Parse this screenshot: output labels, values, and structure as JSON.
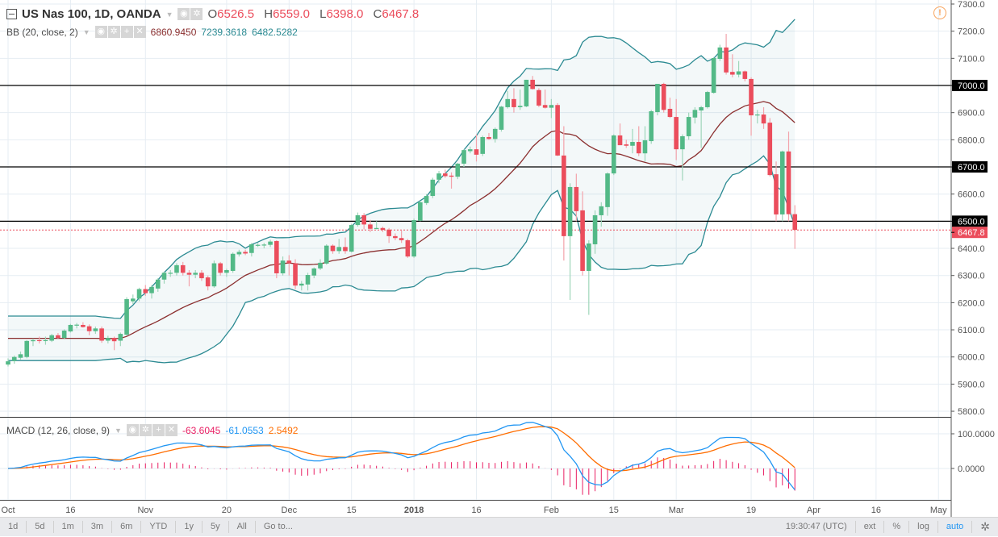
{
  "symbol": {
    "title": "US Nas 100, 1D, OANDA",
    "o_label": "O",
    "o": "6526.5",
    "h_label": "H",
    "h": "6559.0",
    "l_label": "L",
    "l": "6398.0",
    "c_label": "C",
    "c": "6467.8"
  },
  "bb": {
    "label": "BB (20, close, 2)",
    "basis": "6860.9450",
    "upper": "7239.3618",
    "lower": "6482.5282"
  },
  "macd": {
    "label": "MACD (12, 26, close, 9)",
    "hist": "-63.6045",
    "macd": "-61.0553",
    "signal": "2.5492"
  },
  "colors": {
    "up": "#53b987",
    "down": "#eb4d5c",
    "band": "#2b8a92",
    "basis": "#8b2f2f",
    "macd": "#2196f3",
    "signal": "#ff6d00",
    "hist": "#e91e63"
  },
  "toolbar": {
    "ranges": [
      "1d",
      "5d",
      "1m",
      "3m",
      "6m",
      "YTD",
      "1y",
      "5y",
      "All"
    ],
    "goto": "Go to...",
    "time": "19:30:47 (UTC)",
    "ext": "ext",
    "percent": "%",
    "log": "log",
    "auto": "auto"
  },
  "chart_data": {
    "type": "candlestick",
    "title": "US Nas 100, 1D, OANDA",
    "price_axis": {
      "ticks": [
        "7300.0",
        "7200.0",
        "7100.0",
        "7000.0",
        "6900.0",
        "6800.0",
        "6700.0",
        "6600.0",
        "6500.0",
        "6400.0",
        "6300.0",
        "6200.0",
        "6100.0",
        "6000.0",
        "5900.0",
        "5800.0"
      ],
      "range": [
        5800,
        7300
      ]
    },
    "macd_axis": {
      "ticks": [
        "100.0000",
        "0.0000"
      ]
    },
    "horizontal_lines": [
      {
        "value": 7000,
        "label": "7000.0"
      },
      {
        "value": 6700,
        "label": "6700.0"
      },
      {
        "value": 6500,
        "label": "6500.0"
      }
    ],
    "last_price": {
      "value": 6467.8,
      "label": "6467.8"
    },
    "time_ticks": [
      {
        "bar": 0,
        "label": "Oct"
      },
      {
        "bar": 10,
        "label": "16"
      },
      {
        "bar": 22,
        "label": "Nov"
      },
      {
        "bar": 35,
        "label": "20"
      },
      {
        "bar": 45,
        "label": "Dec"
      },
      {
        "bar": 55,
        "label": "15"
      },
      {
        "bar": 65,
        "label": "2018"
      },
      {
        "bar": 75,
        "label": "16"
      },
      {
        "bar": 87,
        "label": "Feb"
      },
      {
        "bar": 97,
        "label": "15"
      },
      {
        "bar": 107,
        "label": "Mar"
      },
      {
        "bar": 119,
        "label": "19"
      },
      {
        "bar": 129,
        "label": "Apr"
      },
      {
        "bar": 139,
        "label": "16"
      },
      {
        "bar": 149,
        "label": "May"
      }
    ],
    "ohlc": [
      [
        5972,
        5995,
        5965,
        5984
      ],
      [
        5985,
        6005,
        5975,
        6000
      ],
      [
        5997,
        6020,
        5990,
        6010
      ],
      [
        6000,
        6062,
        5995,
        6059
      ],
      [
        6058,
        6068,
        6040,
        6062
      ],
      [
        6062,
        6075,
        6050,
        6060
      ],
      [
        6060,
        6075,
        6045,
        6062
      ],
      [
        6060,
        6085,
        6055,
        6080
      ],
      [
        6080,
        6088,
        6068,
        6070
      ],
      [
        6070,
        6102,
        6065,
        6097
      ],
      [
        6094,
        6122,
        6090,
        6118
      ],
      [
        6118,
        6125,
        6105,
        6119
      ],
      [
        6118,
        6128,
        6108,
        6110
      ],
      [
        6113,
        6120,
        6080,
        6095
      ],
      [
        6095,
        6112,
        6085,
        6105
      ],
      [
        6105,
        6112,
        6052,
        6060
      ],
      [
        6060,
        6078,
        6050,
        6070
      ],
      [
        6070,
        6075,
        6025,
        6058
      ],
      [
        6060,
        6090,
        6040,
        6085
      ],
      [
        6082,
        6220,
        6078,
        6213
      ],
      [
        6205,
        6230,
        6195,
        6215
      ],
      [
        6215,
        6255,
        6205,
        6250
      ],
      [
        6250,
        6265,
        6225,
        6235
      ],
      [
        6235,
        6265,
        6215,
        6258
      ],
      [
        6252,
        6290,
        6240,
        6285
      ],
      [
        6285,
        6315,
        6270,
        6310
      ],
      [
        6310,
        6320,
        6295,
        6310
      ],
      [
        6310,
        6345,
        6300,
        6338
      ],
      [
        6338,
        6350,
        6300,
        6310
      ],
      [
        6310,
        6320,
        6260,
        6303
      ],
      [
        6303,
        6320,
        6290,
        6310
      ],
      [
        6310,
        6320,
        6280,
        6290
      ],
      [
        6293,
        6300,
        6245,
        6260
      ],
      [
        6260,
        6355,
        6255,
        6345
      ],
      [
        6345,
        6350,
        6300,
        6310
      ],
      [
        6310,
        6325,
        6295,
        6320
      ],
      [
        6317,
        6385,
        6310,
        6380
      ],
      [
        6378,
        6395,
        6370,
        6387
      ],
      [
        6387,
        6395,
        6375,
        6381
      ],
      [
        6383,
        6420,
        6370,
        6415
      ],
      [
        6413,
        6420,
        6405,
        6413
      ],
      [
        6413,
        6420,
        6400,
        6414
      ],
      [
        6413,
        6432,
        6405,
        6425
      ],
      [
        6427,
        6430,
        6290,
        6308
      ],
      [
        6308,
        6370,
        6300,
        6355
      ],
      [
        6355,
        6375,
        6300,
        6345
      ],
      [
        6345,
        6360,
        6250,
        6263
      ],
      [
        6263,
        6280,
        6245,
        6270
      ],
      [
        6267,
        6310,
        6245,
        6302
      ],
      [
        6300,
        6330,
        6290,
        6326
      ],
      [
        6326,
        6360,
        6320,
        6347
      ],
      [
        6344,
        6415,
        6340,
        6410
      ],
      [
        6410,
        6415,
        6380,
        6390
      ],
      [
        6390,
        6435,
        6380,
        6405
      ],
      [
        6405,
        6440,
        6380,
        6390
      ],
      [
        6388,
        6490,
        6385,
        6486
      ],
      [
        6486,
        6532,
        6480,
        6522
      ],
      [
        6522,
        6530,
        6470,
        6488
      ],
      [
        6488,
        6505,
        6460,
        6472
      ],
      [
        6472,
        6500,
        6470,
        6475
      ],
      [
        6475,
        6480,
        6460,
        6468
      ],
      [
        6469,
        6475,
        6420,
        6445
      ],
      [
        6445,
        6455,
        6430,
        6438
      ],
      [
        6438,
        6465,
        6420,
        6430
      ],
      [
        6430,
        6435,
        6365,
        6370
      ],
      [
        6370,
        6510,
        6365,
        6504
      ],
      [
        6502,
        6575,
        6500,
        6570
      ],
      [
        6567,
        6600,
        6560,
        6593
      ],
      [
        6593,
        6660,
        6585,
        6653
      ],
      [
        6653,
        6685,
        6640,
        6676
      ],
      [
        6676,
        6690,
        6660,
        6666
      ],
      [
        6668,
        6680,
        6620,
        6664
      ],
      [
        6664,
        6715,
        6655,
        6712
      ],
      [
        6712,
        6765,
        6700,
        6762
      ],
      [
        6758,
        6775,
        6750,
        6765
      ],
      [
        6765,
        6820,
        6720,
        6745
      ],
      [
        6748,
        6815,
        6740,
        6810
      ],
      [
        6810,
        6825,
        6800,
        6803
      ],
      [
        6803,
        6845,
        6790,
        6840
      ],
      [
        6837,
        6925,
        6830,
        6922
      ],
      [
        6920,
        6980,
        6915,
        6950
      ],
      [
        6950,
        6990,
        6900,
        6920
      ],
      [
        6920,
        6985,
        6910,
        6925
      ],
      [
        6923,
        7021,
        6920,
        7021
      ],
      [
        7021,
        7035,
        6985,
        6987
      ],
      [
        6983,
        6990,
        6920,
        6926
      ],
      [
        6928,
        6985,
        6915,
        6918
      ],
      [
        6918,
        6950,
        6880,
        6928
      ],
      [
        6928,
        6935,
        6740,
        6742
      ],
      [
        6742,
        6850,
        6355,
        6445
      ],
      [
        6445,
        6640,
        6210,
        6626
      ],
      [
        6626,
        6675,
        6500,
        6537
      ],
      [
        6540,
        6610,
        6300,
        6317
      ],
      [
        6317,
        6430,
        6155,
        6418
      ],
      [
        6415,
        6540,
        6380,
        6522
      ],
      [
        6522,
        6570,
        6480,
        6555
      ],
      [
        6552,
        6680,
        6520,
        6676
      ],
      [
        6676,
        6820,
        6670,
        6816
      ],
      [
        6816,
        6860,
        6780,
        6780
      ],
      [
        6783,
        6800,
        6770,
        6778
      ],
      [
        6778,
        6840,
        6750,
        6792
      ],
      [
        6792,
        6850,
        6740,
        6750
      ],
      [
        6750,
        6850,
        6720,
        6798
      ],
      [
        6795,
        6910,
        6785,
        6905
      ],
      [
        6902,
        7006,
        6890,
        7006
      ],
      [
        7006,
        7010,
        6900,
        6910
      ],
      [
        6914,
        6955,
        6880,
        6884
      ],
      [
        6884,
        6950,
        6725,
        6765
      ],
      [
        6765,
        6820,
        6650,
        6813
      ],
      [
        6813,
        6900,
        6800,
        6884
      ],
      [
        6882,
        6920,
        6860,
        6910
      ],
      [
        6908,
        6925,
        6770,
        6920
      ],
      [
        6920,
        6980,
        6915,
        6976
      ],
      [
        6973,
        7105,
        6970,
        7101
      ],
      [
        7098,
        7150,
        7090,
        7140
      ],
      [
        7140,
        7190,
        7040,
        7048
      ],
      [
        7050,
        7115,
        7030,
        7040
      ],
      [
        7040,
        7090,
        7030,
        7052
      ],
      [
        7052,
        7055,
        7015,
        7024
      ],
      [
        7024,
        7030,
        6815,
        6890
      ],
      [
        6890,
        6910,
        6860,
        6893
      ],
      [
        6893,
        6920,
        6840,
        6860
      ],
      [
        6863,
        6880,
        6665,
        6670
      ],
      [
        6673,
        6720,
        6500,
        6525
      ],
      [
        6525,
        6760,
        6500,
        6757
      ],
      [
        6757,
        6830,
        6500,
        6526
      ],
      [
        6526,
        6559,
        6398,
        6468
      ]
    ]
  }
}
